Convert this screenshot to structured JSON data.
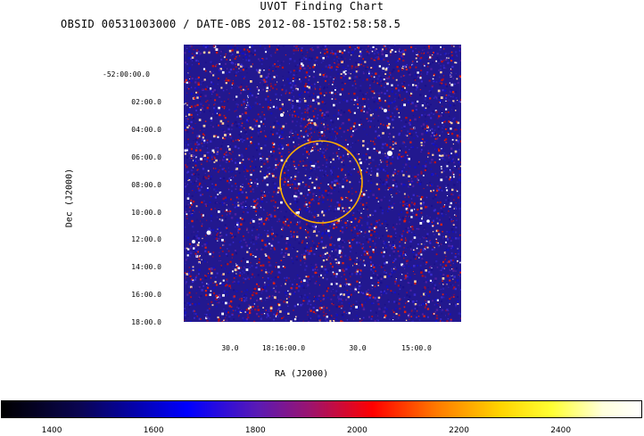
{
  "chart_data": {
    "type": "heatmap",
    "title": "UVOT Finding Chart",
    "subtitle": "OBSID 00531003000 / DATE-OBS 2012-08-15T02:58:58.5",
    "xlabel": "RA (J2000)",
    "ylabel": "Dec (J2000)",
    "x_tick_labels": [
      "30.0",
      "18:16:00.0",
      "30.0",
      "15:00.0"
    ],
    "y_tick_labels": [
      "-52:00:00.0",
      "02:00.0",
      "04:00.0",
      "06:00.0",
      "08:00.0",
      "10:00.0",
      "12:00.0",
      "14:00.0",
      "16:00.0",
      "18:00.0"
    ],
    "colorbar": {
      "range": [
        1300,
        2560
      ],
      "tick_values": [
        1400,
        1600,
        1800,
        2000,
        2200,
        2400
      ],
      "tick_labels": [
        "1400",
        "1600",
        "1800",
        "2000",
        "2200",
        "2400"
      ],
      "colormap": "black-blue-red-yellow-white"
    },
    "target_circle": {
      "ra_approx": "18:15:52",
      "dec_approx": "-52:07:50",
      "color": "#ffb000"
    },
    "grid": false
  }
}
